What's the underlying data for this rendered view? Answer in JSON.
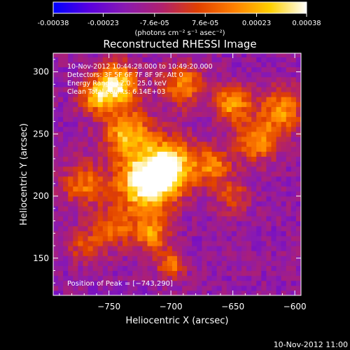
{
  "colorbar": {
    "tick_labels": [
      "-0.00038",
      "-0.00023",
      "-7.6e-05",
      "7.6e-05",
      "0.00023",
      "0.00038"
    ],
    "tick_values": [
      -0.00038,
      -0.00023,
      -7.6e-05,
      7.6e-05,
      0.00023,
      0.00038
    ],
    "range": [
      -0.00038,
      0.00038
    ],
    "units_label": "(photons cm⁻² s⁻¹ asec⁻²)",
    "colors": [
      "#0000ff",
      "#5a00e0",
      "#8a1ab0",
      "#b0206e",
      "#e04000",
      "#ff8000",
      "#ffd000",
      "#ffffff"
    ]
  },
  "chart_data": {
    "type": "heatmap",
    "title": "Reconstructed RHESSI Image",
    "xlabel": "Heliocentric X (arcsec)",
    "ylabel": "Heliocentric Y (arcsec)",
    "xlim": [
      -795,
      -595
    ],
    "ylim": [
      120,
      315
    ],
    "xticks": [
      -750,
      -700,
      -650,
      -600
    ],
    "yticks": [
      150,
      200,
      250,
      300
    ],
    "xtick_labels": [
      "−750",
      "−700",
      "−650",
      "−600"
    ],
    "ytick_labels": [
      "150",
      "200",
      "250",
      "300"
    ],
    "peak": [
      -743,
      290
    ],
    "annotations": [
      "10-Nov-2012 10:44:28.000 to 10:49:20.000",
      "Detectors: 3F 5F 6F 7F 8F 9F, Att 0",
      "Energy Range 12.0 - 25.0 keV",
      "Clean    Total counts: 6.14E+03"
    ],
    "peak_label": "Position of Peak = [−743,290]"
  },
  "footer": {
    "timestamp": "10-Nov-2012 11:00"
  }
}
